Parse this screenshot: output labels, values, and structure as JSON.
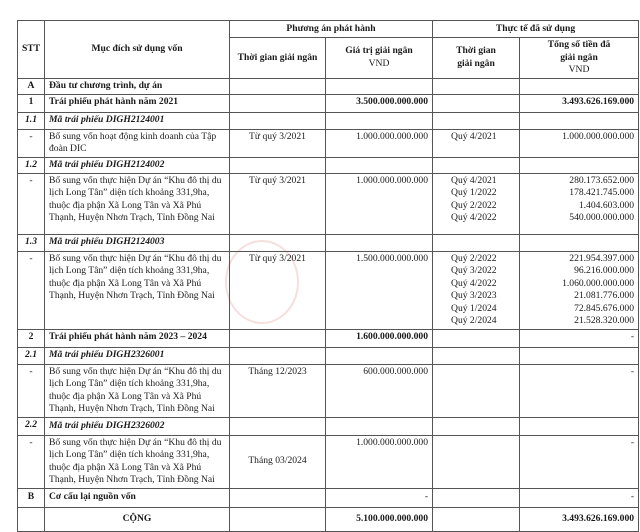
{
  "header": {
    "stt": "STT",
    "purpose": "Mục đích sử dụng vốn",
    "plan_group": "Phương án phát hành",
    "actual_group": "Thực tế đã sử dụng",
    "plan_time": "Thời gian giải ngân",
    "plan_value": "Giá trị giải ngân",
    "plan_value_unit": "VND",
    "actual_time": "Thời gian giải ngân",
    "actual_total": "Tổng số tiền đã giải ngân",
    "actual_total_unit": "VND"
  },
  "rows": {
    "a": {
      "stt": "A",
      "label": "Đầu tư chương trình, dự án"
    },
    "r1": {
      "stt": "1",
      "label": "Trái phiếu phát hành năm 2021",
      "plan_value": "3.500.000.000.000",
      "actual_total": "3.493.626.169.000"
    },
    "r11": {
      "stt": "1.1",
      "label": "Mã trái phiếu DIGH2124001"
    },
    "r11d": {
      "stt": "-",
      "label": "Bổ sung vốn hoạt động kinh doanh của Tập đoàn DIC",
      "plan_time": "Từ quý  3/2021",
      "plan_value": "1.000.000.000.000",
      "actual_time": "Quý 4/2021",
      "actual_total": "1.000.000.000.000"
    },
    "r12": {
      "stt": "1.2",
      "label": "Mã trái phiếu DIGH2124002"
    },
    "r12d": {
      "stt": "-",
      "label": "Bổ sung vốn thực hiện Dự án “Khu đô thị du lịch Long Tân” diện tích khoảng  331,9ha, thuộc địa phận Xã Long Tân và Xã Phú Thạnh, Huyện Nhơn Trạch, Tỉnh Đồng Nai",
      "plan_time": "Từ quý  3/2021",
      "plan_value": "1.000.000.000.000",
      "actual": [
        {
          "time": "Quý 4/2021",
          "amount": "280.173.652.000"
        },
        {
          "time": "Quý 1/2022",
          "amount": "178.421.745.000"
        },
        {
          "time": "Quý 2/2022",
          "amount": "1.404.603.000"
        },
        {
          "time": "Quý 4/2022",
          "amount": "540.000.000.000"
        }
      ]
    },
    "r13": {
      "stt": "1.3",
      "label": "Mã trái phiếu DIGH2124003"
    },
    "r13d": {
      "stt": "-",
      "label": "Bổ sung vốn thực hiện Dự án “Khu đô thị du lịch Long Tân” diện tích khoảng  331,9ha, thuộc địa phận Xã Long Tân và Xã Phú Thạnh, Huyện Nhơn Trạch, Tỉnh Đồng Nai",
      "plan_time": "Từ quý  3/2021",
      "plan_value": "1.500.000.000.000",
      "actual": [
        {
          "time": "Quý 2/2022",
          "amount": "221.954.397.000"
        },
        {
          "time": "Quý 3/2022",
          "amount": "96.216.000.000"
        },
        {
          "time": "Quý 4/2022",
          "amount": "1.060.000.000.000"
        },
        {
          "time": "Quý 3/2023",
          "amount": "21.081.776.000"
        },
        {
          "time": "Quý 1/2024",
          "amount": "72.845.676.000"
        },
        {
          "time": "Quý 2/2024",
          "amount": "21.528.320.000"
        }
      ]
    },
    "r2": {
      "stt": "2",
      "label": "Trái phiếu phát hành năm 2023 – 2024",
      "plan_value": "1.600.000.000.000",
      "actual_total": "-"
    },
    "r21": {
      "stt": "2.1",
      "label": "Mã trái phiếu DIGH2326001"
    },
    "r21d": {
      "stt": "-",
      "label": "Bổ sung vốn thực hiện Dự án “Khu đô thị du lịch Long Tân” diện tích khoảng  331,9ha, thuộc địa phận Xã Long Tân và Xã Phú Thạnh, Huyện Nhơn Trạch, Tỉnh Đồng Nai",
      "plan_time": "Tháng  12/2023",
      "plan_value": "600.000.000.000",
      "actual_total": "-"
    },
    "r22": {
      "stt": "2.2",
      "label": "Mã trái phiếu DIGH2326002"
    },
    "r22d": {
      "stt": "-",
      "label": "Bổ sung vốn thực hiện Dự án “Khu đô thị du lịch Long Tân” diện tích khoảng  331,9ha, thuộc địa phận Xã Long Tân và Xã Phú Thạnh, Huyện Nhơn Trạch, Tỉnh Đồng Nai",
      "plan_time": "Tháng  03/2024",
      "plan_value": "1.000.000.000.000",
      "actual_total": "-"
    },
    "b": {
      "stt": "B",
      "label": "Cơ cấu lại nguồn vốn",
      "plan_value": "-",
      "actual_total": "-"
    },
    "total": {
      "label": "CỘNG",
      "plan_value": "5.100.000.000.000",
      "actual_total": "3.493.626.169.000"
    }
  }
}
